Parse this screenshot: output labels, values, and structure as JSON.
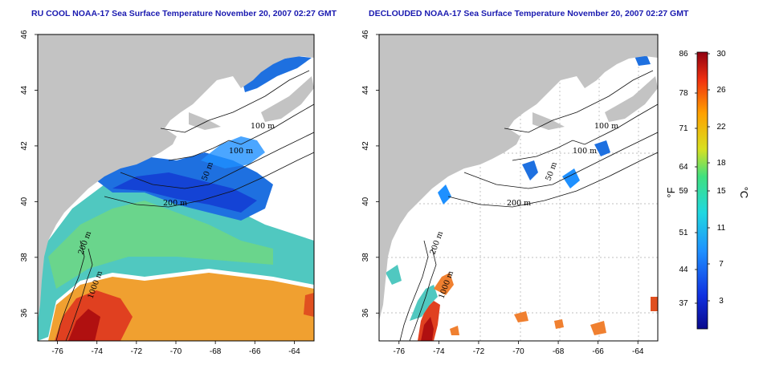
{
  "titles": {
    "left": "RU COOL NOAA-17 Sea Surface Temperature November 20, 2007 02:27 GMT",
    "right": "DECLOUDED NOAA-17 Sea Surface Temperature November 20, 2007 02:27 GMT"
  },
  "axes": {
    "lon_ticks": [
      "-76",
      "-74",
      "-72",
      "-70",
      "-68",
      "-66",
      "-64"
    ],
    "lat_ticks": [
      "46",
      "44",
      "42",
      "40",
      "38",
      "36"
    ]
  },
  "contour_labels": {
    "left": [
      "100 m",
      "100 m",
      "50 m",
      "200 m",
      "200 m",
      "1000 m"
    ],
    "right": [
      "100 m",
      "100 m",
      "50 m",
      "200 m",
      "200 m",
      "1000 m"
    ]
  },
  "colorbar": {
    "fahrenheit_ticks": [
      "86",
      "78",
      "71",
      "64",
      "59",
      "51",
      "44",
      "37"
    ],
    "celsius_ticks": [
      "30",
      "26",
      "22",
      "18",
      "15",
      "11",
      "7",
      "3"
    ],
    "fahrenheit_unit": "°F",
    "celsius_unit": "°C"
  },
  "colors": {
    "land": "#c3c3c3",
    "title": "#1a1ab0",
    "cold": "#0a0a9a",
    "warm": "#b01010"
  }
}
